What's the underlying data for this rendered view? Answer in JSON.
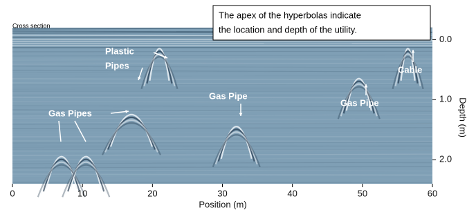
{
  "chart_data": {
    "type": "radargram",
    "subtitle": "Cross section",
    "note": [
      "The apex of the hyperbolas  indicate",
      "the location and depth of the utility."
    ],
    "xlabel": "Position (m)",
    "ylabel": "Depth (m)",
    "xlim": [
      0,
      60
    ],
    "xticks": [
      0,
      10,
      20,
      30,
      40,
      50,
      60
    ],
    "ylim": [
      -0.2,
      2.4
    ],
    "yticks": [
      {
        "value": 0,
        "label": "0.0"
      },
      {
        "value": 1,
        "label": "1.0"
      },
      {
        "value": 2,
        "label": "2.0"
      }
    ],
    "annotations": [
      "Plastic",
      "Pipes",
      "Gas Pipes",
      "Gas Pipe",
      "Gas Pipe",
      "Cable"
    ]
  }
}
